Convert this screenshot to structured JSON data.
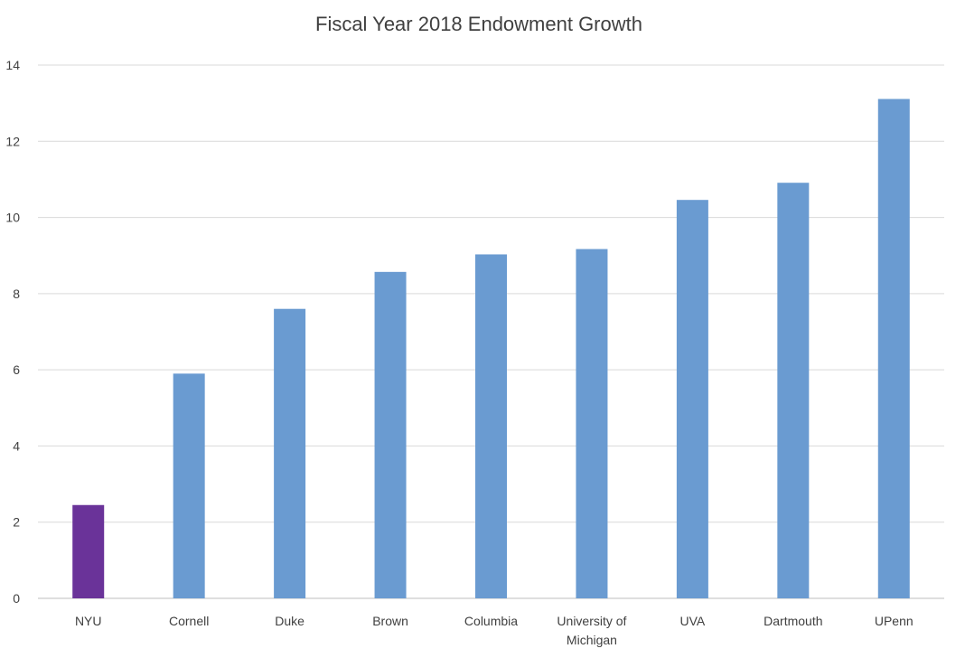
{
  "chart_data": {
    "type": "bar",
    "title": "Fiscal Year 2018 Endowment Growth",
    "xlabel": "",
    "ylabel": "",
    "ylim": [
      0,
      14
    ],
    "yticks": [
      0,
      2,
      4,
      6,
      8,
      10,
      12,
      14
    ],
    "grid": true,
    "legend": "none",
    "categories": [
      "NYU",
      "Cornell",
      "Duke",
      "Brown",
      "Columbia",
      "University of Michigan",
      "UVA",
      "Dartmouth",
      "UPenn"
    ],
    "category_label_lines": [
      [
        "NYU"
      ],
      [
        "Cornell"
      ],
      [
        "Duke"
      ],
      [
        "Brown"
      ],
      [
        "Columbia"
      ],
      [
        "University of",
        "Michigan"
      ],
      [
        "UVA"
      ],
      [
        "Dartmouth"
      ],
      [
        "UPenn"
      ]
    ],
    "values": [
      2.45,
      5.9,
      7.6,
      8.57,
      9.03,
      9.17,
      10.46,
      10.91,
      13.11
    ],
    "bar_colors": [
      "#6a3399",
      "#6a9bd1",
      "#6a9bd1",
      "#6a9bd1",
      "#6a9bd1",
      "#6a9bd1",
      "#6a9bd1",
      "#6a9bd1",
      "#6a9bd1"
    ]
  }
}
